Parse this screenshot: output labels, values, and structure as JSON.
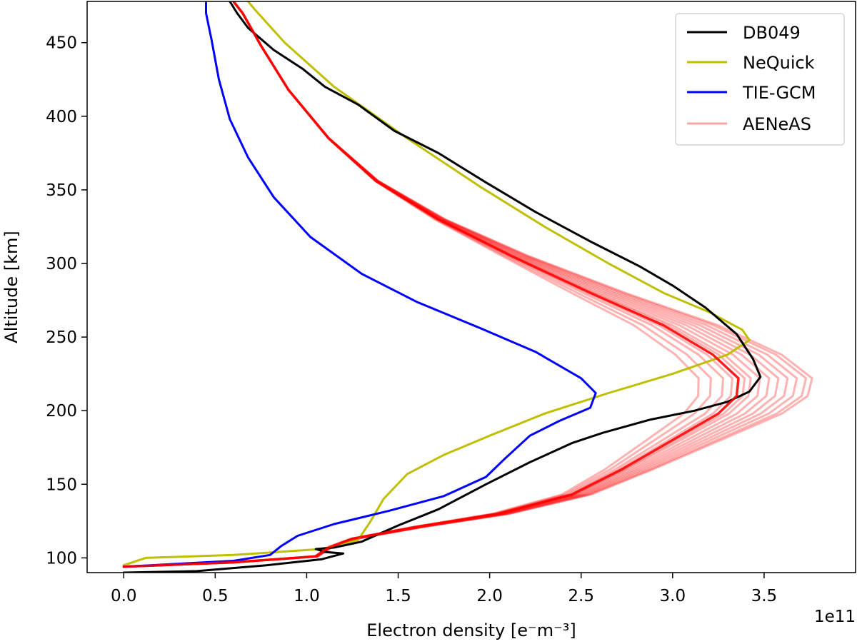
{
  "chart_data": {
    "type": "line",
    "xlabel": "Electron density [e⁻m⁻³]",
    "ylabel": "Altitude [km]",
    "x_offset_label": "1e11",
    "xlim": [
      -0.2,
      4.0
    ],
    "ylim": [
      90,
      478
    ],
    "x_ticks": [
      0.0,
      0.5,
      1.0,
      1.5,
      2.0,
      2.5,
      3.0,
      3.5
    ],
    "x_tick_labels": [
      "0.0",
      "0.5",
      "1.0",
      "1.5",
      "2.0",
      "2.5",
      "3.0",
      "3.5"
    ],
    "y_ticks": [
      100,
      150,
      200,
      250,
      300,
      350,
      400,
      450
    ],
    "y_tick_labels": [
      "100",
      "150",
      "200",
      "250",
      "300",
      "350",
      "400",
      "450"
    ],
    "grid": false,
    "legend_position": "top-right",
    "colors": {
      "DB049": "#000000",
      "NeQuick": "#bfbf00",
      "TIE-GCM": "#0000ff",
      "AENeAS": "#ff0000",
      "AENeAS_legend": "#f8a6a6"
    },
    "series": [
      {
        "name": "DB049",
        "points": [
          [
            0.0,
            90
          ],
          [
            0.4,
            91
          ],
          [
            0.78,
            95
          ],
          [
            1.08,
            99
          ],
          [
            1.2,
            103
          ],
          [
            1.1,
            104
          ],
          [
            1.05,
            106
          ],
          [
            1.15,
            107
          ],
          [
            1.3,
            111
          ],
          [
            1.5,
            122
          ],
          [
            1.72,
            133
          ],
          [
            1.98,
            150
          ],
          [
            2.22,
            165
          ],
          [
            2.45,
            178
          ],
          [
            2.62,
            185
          ],
          [
            2.88,
            194
          ],
          [
            3.12,
            200
          ],
          [
            3.3,
            206
          ],
          [
            3.42,
            213
          ],
          [
            3.48,
            223
          ],
          [
            3.44,
            235
          ],
          [
            3.35,
            252
          ],
          [
            3.18,
            270
          ],
          [
            3.0,
            285
          ],
          [
            2.82,
            298
          ],
          [
            2.55,
            315
          ],
          [
            2.25,
            335
          ],
          [
            1.98,
            355
          ],
          [
            1.72,
            375
          ],
          [
            1.48,
            390
          ],
          [
            1.28,
            408
          ],
          [
            1.1,
            420
          ],
          [
            0.98,
            432
          ],
          [
            0.82,
            445
          ],
          [
            0.68,
            460
          ],
          [
            0.62,
            470
          ],
          [
            0.58,
            478
          ]
        ]
      },
      {
        "name": "NeQuick",
        "points": [
          [
            0.0,
            95
          ],
          [
            0.12,
            100
          ],
          [
            0.6,
            102
          ],
          [
            1.08,
            106
          ],
          [
            1.28,
            112
          ],
          [
            1.35,
            125
          ],
          [
            1.42,
            140
          ],
          [
            1.55,
            157
          ],
          [
            1.75,
            170
          ],
          [
            2.0,
            183
          ],
          [
            2.3,
            198
          ],
          [
            2.65,
            212
          ],
          [
            3.0,
            225
          ],
          [
            3.3,
            238
          ],
          [
            3.42,
            248
          ],
          [
            3.38,
            255
          ],
          [
            3.2,
            267
          ],
          [
            2.95,
            280
          ],
          [
            2.65,
            300
          ],
          [
            2.3,
            325
          ],
          [
            1.95,
            352
          ],
          [
            1.55,
            385
          ],
          [
            1.15,
            420
          ],
          [
            0.88,
            450
          ],
          [
            0.72,
            472
          ],
          [
            0.68,
            478
          ]
        ]
      },
      {
        "name": "TIE-GCM",
        "points": [
          [
            0.0,
            94
          ],
          [
            0.6,
            98
          ],
          [
            0.8,
            102
          ],
          [
            0.86,
            108
          ],
          [
            0.95,
            115
          ],
          [
            1.15,
            123
          ],
          [
            1.45,
            132
          ],
          [
            1.75,
            142
          ],
          [
            1.98,
            155
          ],
          [
            2.08,
            167
          ],
          [
            2.22,
            183
          ],
          [
            2.38,
            193
          ],
          [
            2.55,
            202
          ],
          [
            2.58,
            212
          ],
          [
            2.5,
            222
          ],
          [
            2.25,
            240
          ],
          [
            1.95,
            256
          ],
          [
            1.6,
            274
          ],
          [
            1.3,
            293
          ],
          [
            1.02,
            318
          ],
          [
            0.82,
            345
          ],
          [
            0.68,
            372
          ],
          [
            0.58,
            398
          ],
          [
            0.52,
            425
          ],
          [
            0.48,
            452
          ],
          [
            0.45,
            470
          ],
          [
            0.45,
            478
          ]
        ]
      },
      {
        "name": "AENeAS",
        "points": [
          [
            0.0,
            94
          ],
          [
            0.6,
            97
          ],
          [
            1.05,
            101
          ],
          [
            1.12,
            107
          ],
          [
            1.25,
            113
          ],
          [
            1.6,
            121
          ],
          [
            2.05,
            130
          ],
          [
            2.45,
            143
          ],
          [
            2.72,
            160
          ],
          [
            3.0,
            180
          ],
          [
            3.25,
            198
          ],
          [
            3.35,
            210
          ],
          [
            3.36,
            222
          ],
          [
            3.22,
            238
          ],
          [
            2.95,
            258
          ],
          [
            2.55,
            280
          ],
          [
            2.12,
            305
          ],
          [
            1.72,
            330
          ],
          [
            1.38,
            356
          ],
          [
            1.12,
            385
          ],
          [
            0.9,
            418
          ],
          [
            0.75,
            448
          ],
          [
            0.65,
            470
          ],
          [
            0.6,
            478
          ]
        ]
      }
    ]
  }
}
